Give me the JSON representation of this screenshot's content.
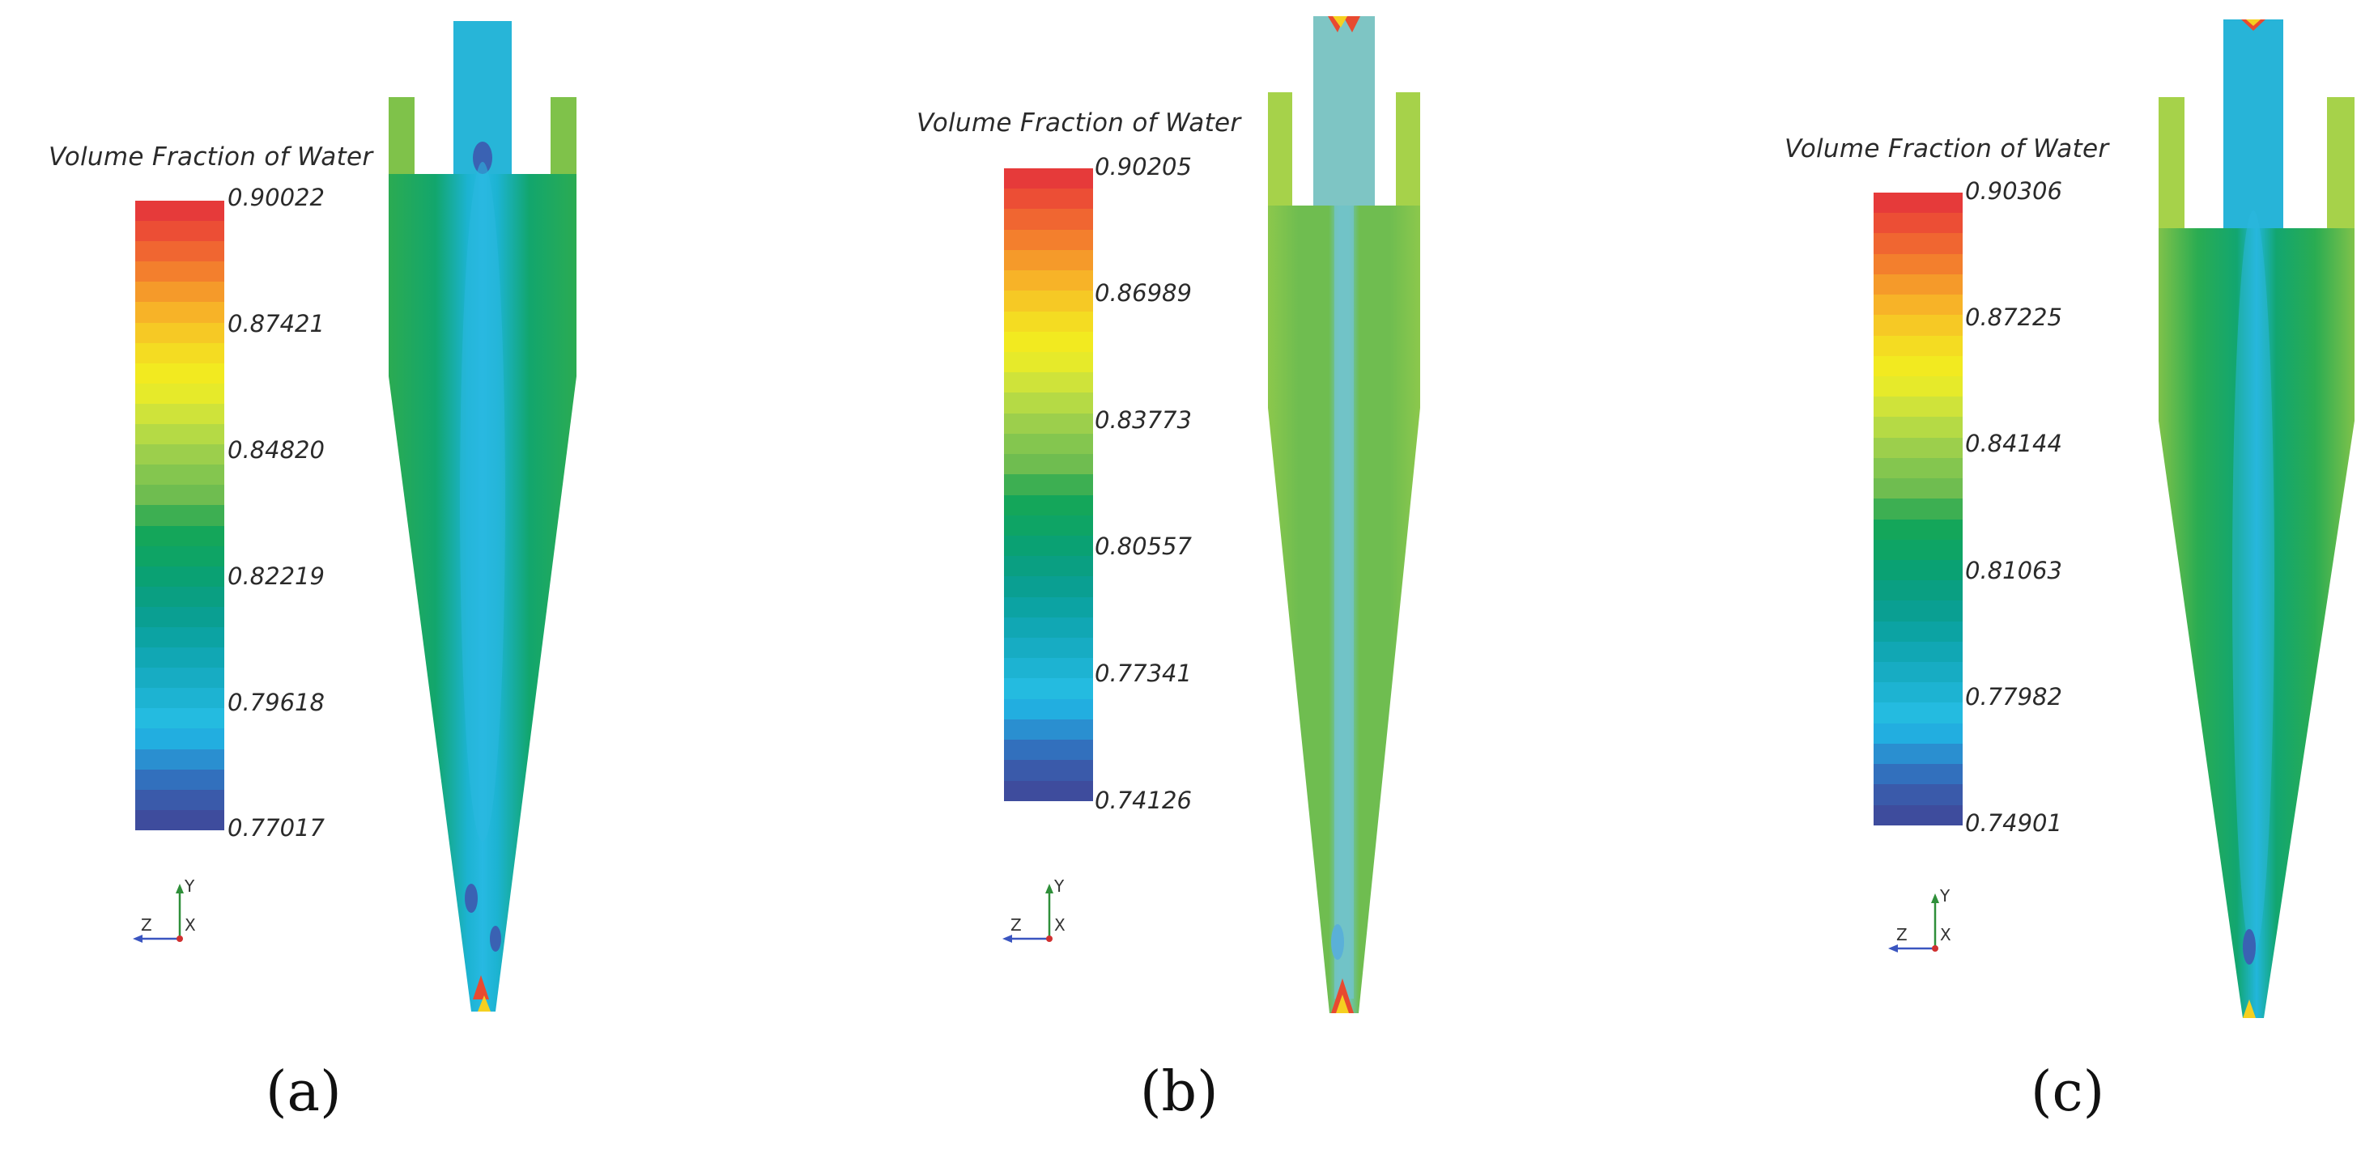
{
  "panels": [
    {
      "label": "(a)",
      "legend_title": "Volume Fraction of Water",
      "ticks": [
        "0.90022",
        "0.87421",
        "0.84820",
        "0.82219",
        "0.79618",
        "0.77017"
      ],
      "axes": {
        "y": "Y",
        "z": "Z",
        "x": "X"
      }
    },
    {
      "label": "(b)",
      "legend_title": "Volume Fraction of Water",
      "ticks": [
        "0.90205",
        "0.86989",
        "0.83773",
        "0.80557",
        "0.77341",
        "0.74126"
      ],
      "axes": {
        "y": "Y",
        "z": "Z",
        "x": "X"
      }
    },
    {
      "label": "(c)",
      "legend_title": "Volume Fraction of Water",
      "ticks": [
        "0.90306",
        "0.87225",
        "0.84144",
        "0.81063",
        "0.77982",
        "0.74901"
      ],
      "axes": {
        "y": "Y",
        "z": "Z",
        "x": "X"
      }
    }
  ],
  "colormap": [
    "#e63a3a",
    "#ec4e35",
    "#f06631",
    "#f37f2d",
    "#f59a2a",
    "#f7b328",
    "#f6c925",
    "#f4dc22",
    "#f2ea20",
    "#e6ea2a",
    "#cfe33a",
    "#b5da45",
    "#9ccf4c",
    "#84c64f",
    "#6fbd50",
    "#3daf52",
    "#14a65a",
    "#0ea465",
    "#0aa173",
    "#0a9f82",
    "#0a9f92",
    "#0ca3a3",
    "#11a7b4",
    "#17acc3",
    "#1db3d2",
    "#24bbe0",
    "#22aee0",
    "#2a8fd0",
    "#3270bd",
    "#3a5aaa",
    "#3e4c9d"
  ]
}
